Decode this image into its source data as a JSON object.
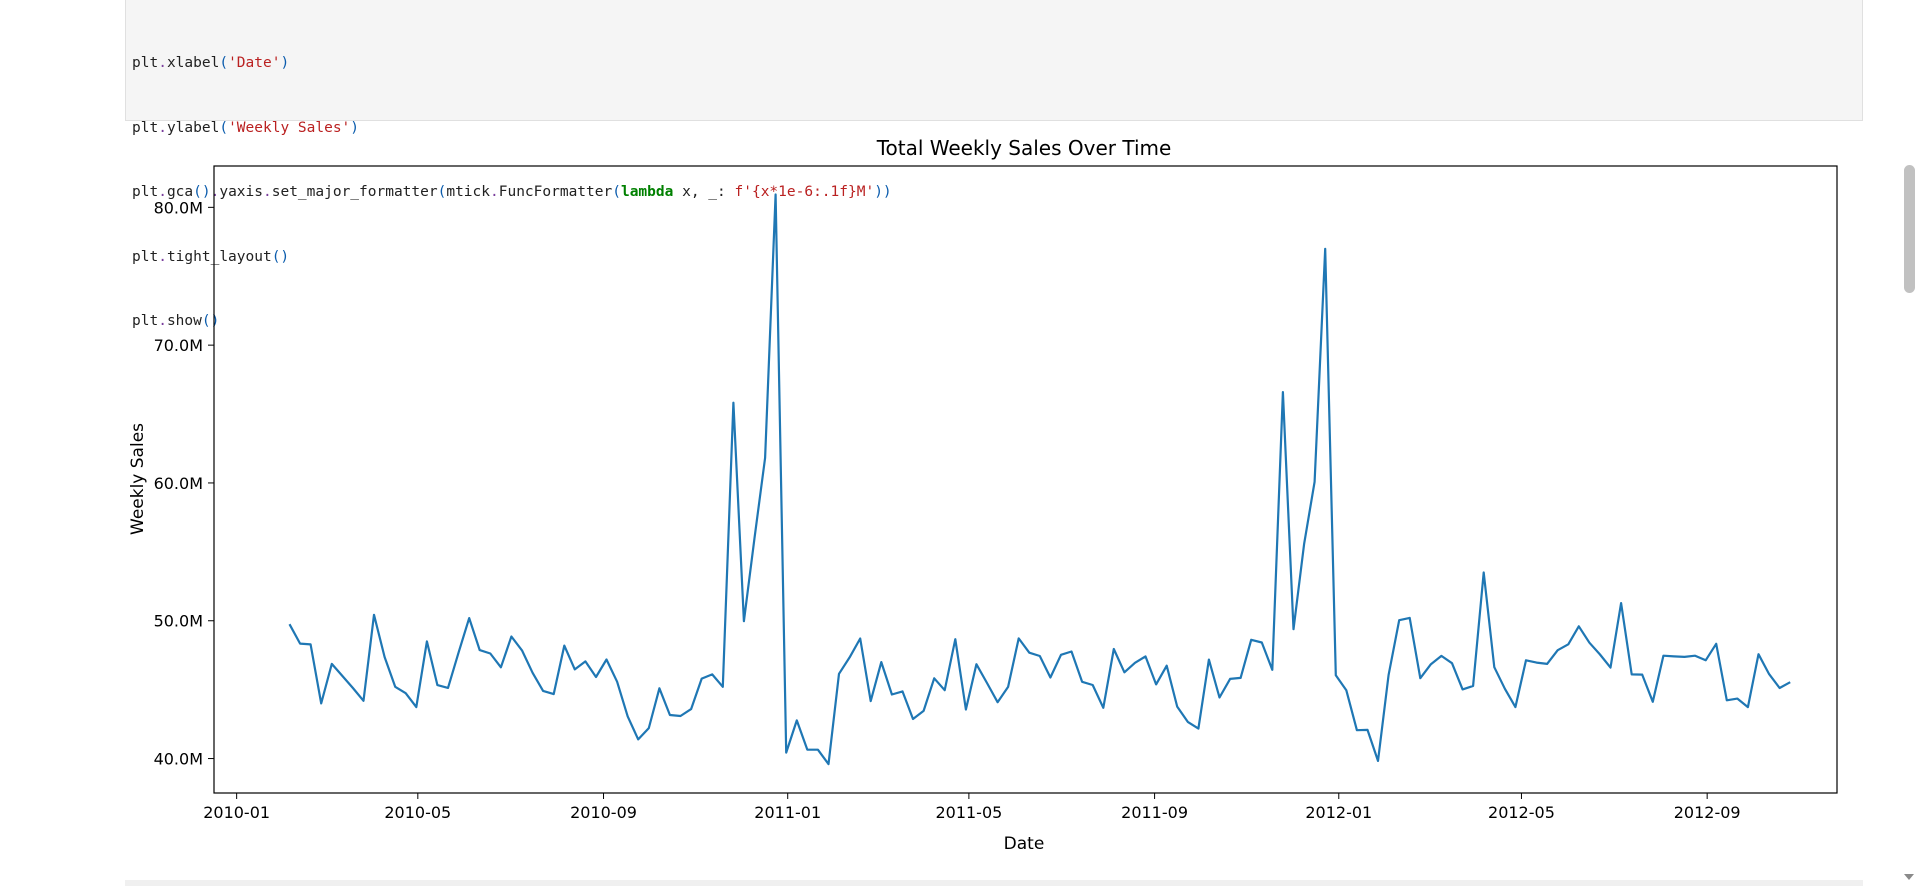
{
  "code": {
    "xlabel_arg": "'Date'",
    "ylabel_arg": "'Weekly Sales'",
    "formatter_str": "f'{x*1e-6:.1f}M'"
  },
  "chart_data": {
    "type": "line",
    "title": "Total Weekly Sales Over Time",
    "xlabel": "Date",
    "ylabel": "Weekly Sales",
    "x_tick_labels": [
      "2010-01",
      "2010-05",
      "2010-09",
      "2011-01",
      "2011-05",
      "2011-09",
      "2012-01",
      "2012-05",
      "2012-09"
    ],
    "y_tick_labels": [
      "40.0M",
      "50.0M",
      "60.0M",
      "70.0M",
      "80.0M"
    ],
    "y_ticks": [
      40,
      50,
      60,
      70,
      80
    ],
    "ylim": [
      37.5,
      83.0
    ],
    "xlim": [
      "2009-12-17",
      "2012-11-26"
    ],
    "line_color": "#1f77b4",
    "grid": false,
    "series": [
      {
        "start_date": "2010-02-05",
        "interval_days": 7,
        "values": [
          49.75,
          48.34,
          48.28,
          44.0,
          46.87,
          46.0,
          45.12,
          44.19,
          50.43,
          47.37,
          45.21,
          44.74,
          43.73,
          48.5,
          45.33,
          45.13,
          47.7,
          50.19,
          47.87,
          47.62,
          46.62,
          48.86,
          47.85,
          46.22,
          44.91,
          44.68,
          48.2,
          46.47,
          47.05,
          45.92,
          47.19,
          45.58,
          43.06,
          41.39,
          42.21,
          45.1,
          43.16,
          43.09,
          43.59,
          45.8,
          46.11,
          45.21,
          65.82,
          49.97,
          56.0,
          61.82,
          80.93,
          40.43,
          42.77,
          40.65,
          40.64,
          39.6,
          46.15,
          47.34,
          48.71,
          44.17,
          47.0,
          44.65,
          44.87,
          42.87,
          43.46,
          45.82,
          44.96,
          48.66,
          43.56,
          46.85,
          45.48,
          44.09,
          45.2,
          48.72,
          47.68,
          47.44,
          45.88,
          47.53,
          47.77,
          45.57,
          45.34,
          43.68,
          47.95,
          46.26,
          46.95,
          47.41,
          45.38,
          46.74,
          43.77,
          42.66,
          42.17,
          47.18,
          44.43,
          45.78,
          45.85,
          48.62,
          48.42,
          46.44,
          66.59,
          49.39,
          55.56,
          60.08,
          76.99,
          46.04,
          44.96,
          42.06,
          42.08,
          39.83,
          46.07,
          50.04,
          50.21,
          45.83,
          46.85,
          47.45,
          46.92,
          45.02,
          45.27,
          53.5,
          46.63,
          45.06,
          43.73,
          47.13,
          46.96,
          46.87,
          47.86,
          48.29,
          49.6,
          48.41,
          47.55,
          46.6,
          51.28,
          46.11,
          46.09,
          44.12,
          47.46,
          47.41,
          47.38,
          47.46,
          47.13,
          48.33,
          44.23,
          44.35,
          43.73,
          47.57,
          46.13,
          45.12,
          45.54
        ]
      }
    ]
  }
}
